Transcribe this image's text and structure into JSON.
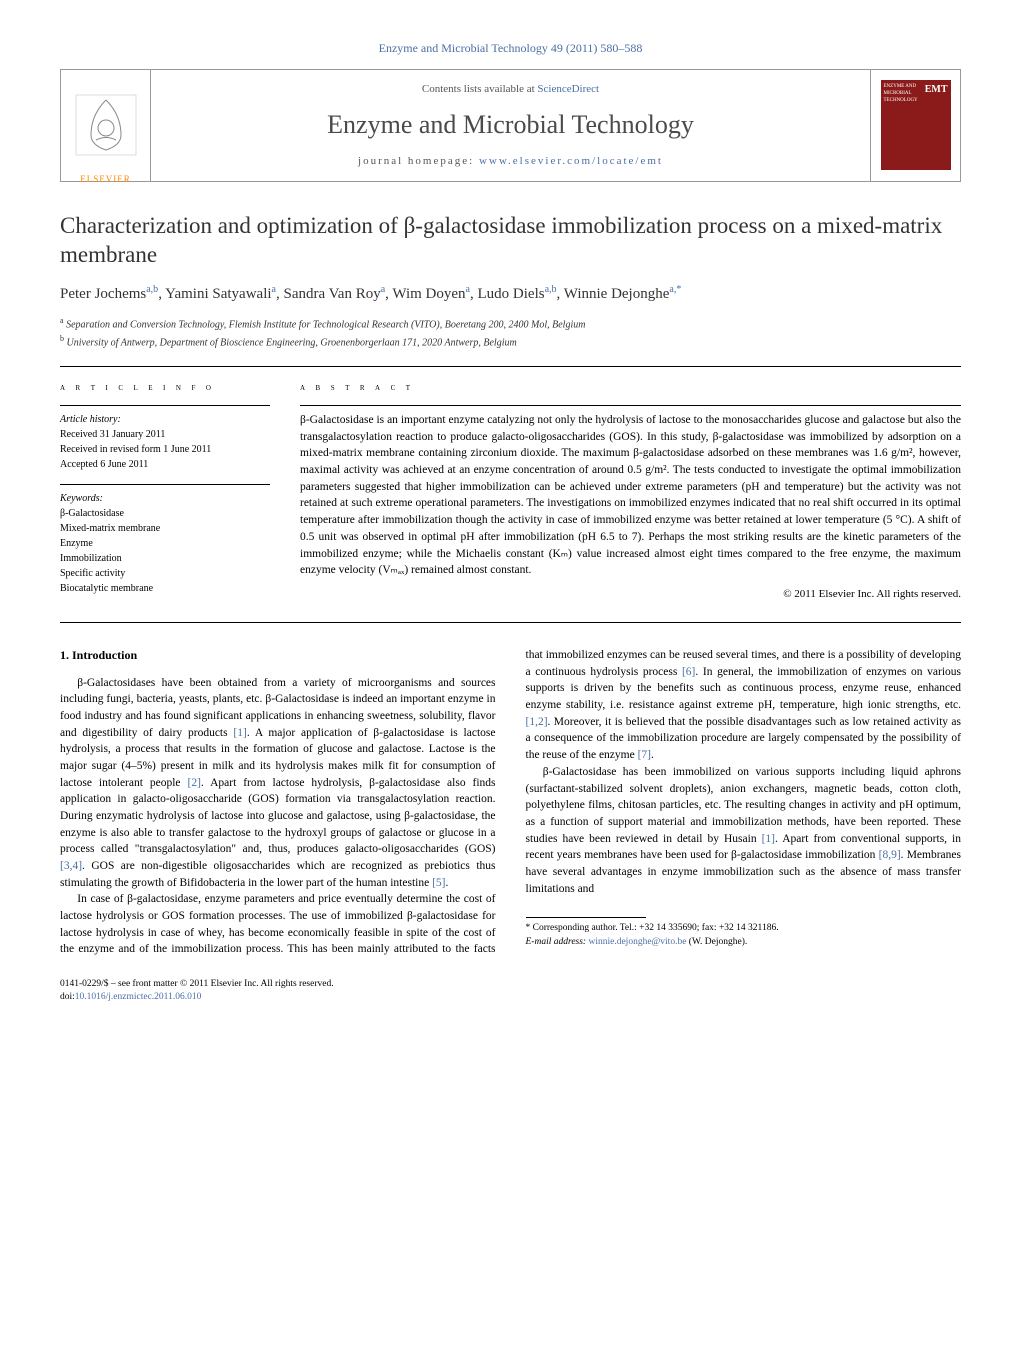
{
  "citation": "Enzyme and Microbial Technology 49 (2011) 580–588",
  "header": {
    "contents_text": "Contents lists available at ",
    "contents_link": "ScienceDirect",
    "journal": "Enzyme and Microbial Technology",
    "homepage_label": "journal homepage: ",
    "homepage_url": "www.elsevier.com/locate/emt",
    "publisher": "ELSEVIER",
    "cover_label_1": "ENZYME AND",
    "cover_label_2": "MICROBIAL",
    "cover_label_3": "TECHNOLOGY",
    "cover_emt": "EMT"
  },
  "title": "Characterization and optimization of β-galactosidase immobilization process on a mixed-matrix membrane",
  "authors_html": "Peter Jochems|a,b|, Yamini Satyawali|a|, Sandra Van Roy|a|, Wim Doyen|a|, Ludo Diels|a,b|, Winnie Dejonghe|a,*|",
  "affiliations": {
    "a": "Separation and Conversion Technology, Flemish Institute for Technological Research (VITO), Boeretang 200, 2400 Mol, Belgium",
    "b": "University of Antwerp, Department of Bioscience Engineering, Groenenborgerlaan 171, 2020 Antwerp, Belgium"
  },
  "article_info": {
    "heading": "a r t i c l e   i n f o",
    "history_label": "Article history:",
    "history": [
      "Received 31 January 2011",
      "Received in revised form 1 June 2011",
      "Accepted 6 June 2011"
    ],
    "keywords_label": "Keywords:",
    "keywords": [
      "β-Galactosidase",
      "Mixed-matrix membrane",
      "Enzyme",
      "Immobilization",
      "Specific activity",
      "Biocatalytic membrane"
    ]
  },
  "abstract": {
    "heading": "a b s t r a c t",
    "text": "β-Galactosidase is an important enzyme catalyzing not only the hydrolysis of lactose to the monosaccharides glucose and galactose but also the transgalactosylation reaction to produce galacto-oligosaccharides (GOS). In this study, β-galactosidase was immobilized by adsorption on a mixed-matrix membrane containing zirconium dioxide. The maximum β-galactosidase adsorbed on these membranes was 1.6 g/m², however, maximal activity was achieved at an enzyme concentration of around 0.5 g/m². The tests conducted to investigate the optimal immobilization parameters suggested that higher immobilization can be achieved under extreme parameters (pH and temperature) but the activity was not retained at such extreme operational parameters. The investigations on immobilized enzymes indicated that no real shift occurred in its optimal temperature after immobilization though the activity in case of immobilized enzyme was better retained at lower temperature (5 °C). A shift of 0.5 unit was observed in optimal pH after immobilization (pH 6.5 to 7). Perhaps the most striking results are the kinetic parameters of the immobilized enzyme; while the Michaelis constant (Kₘ) value increased almost eight times compared to the free enzyme, the maximum enzyme velocity (Vₘₐₓ) remained almost constant.",
    "copyright": "© 2011 Elsevier Inc. All rights reserved."
  },
  "body": {
    "section_heading": "1.  Introduction",
    "para1": "β-Galactosidases have been obtained from a variety of microorganisms and sources including fungi, bacteria, yeasts, plants, etc. β-Galactosidase is indeed an important enzyme in food industry and has found significant applications in enhancing sweetness, solubility, flavor and digestibility of dairy products [1]. A major application of β-galactosidase is lactose hydrolysis, a process that results in the formation of glucose and galactose. Lactose is the major sugar (4–5%) present in milk and its hydrolysis makes milk fit for consumption of lactose intolerant people [2]. Apart from lactose hydrolysis, β-galactosidase also finds application in galacto-oligosaccharide (GOS) formation via transgalactosylation reaction. During enzymatic hydrolysis of lactose into glucose and galactose, using β-galactosidase, the enzyme is also able to transfer galactose to the hydroxyl groups of galactose or glucose in a process called \"transgalactosylation\" and, thus, produces galacto-oligosaccharides (GOS) [3,4]. GOS are non-digestible oligosaccharides which are recognized as prebiotics thus stimulating the growth of Bifidobacteria in the lower part of the human intestine [5].",
    "para2": "In case of β-galactosidase, enzyme parameters and price eventually determine the cost of lactose hydrolysis or GOS formation processes. The use of immobilized β-galactosidase for lactose hydrolysis in case of whey, has become economically feasible in spite of the cost of the enzyme and of the immobilization process. This has been mainly attributed to the facts that immobilized enzymes can be reused several times, and there is a possibility of developing a continuous hydrolysis process [6]. In general, the immobilization of enzymes on various supports is driven by the benefits such as continuous process, enzyme reuse, enhanced enzyme stability, i.e. resistance against extreme pH, temperature, high ionic strengths, etc. [1,2]. Moreover, it is believed that the possible disadvantages such as low retained activity as a consequence of the immobilization procedure are largely compensated by the possibility of the reuse of the enzyme [7].",
    "para3": "β-Galactosidase has been immobilized on various supports including liquid aphrons (surfactant-stabilized solvent droplets), anion exchangers, magnetic beads, cotton cloth, polyethylene films, chitosan particles, etc. The resulting changes in activity and pH optimum, as a function of support material and immobilization methods, have been reported. These studies have been reviewed in detail by Husain [1]. Apart from conventional supports, in recent years membranes have been used for β-galactosidase immobilization [8,9]. Membranes have several advantages in enzyme immobilization such as the absence of mass transfer limitations and"
  },
  "footnote": {
    "corr": "* Corresponding author. Tel.: +32 14 335690; fax: +32 14 321186.",
    "email_label": "E-mail address: ",
    "email": "winnie.dejonghe@vito.be",
    "email_who": " (W. Dejonghe)."
  },
  "bottom": {
    "line1": "0141-0229/$ – see front matter © 2011 Elsevier Inc. All rights reserved.",
    "doi_label": "doi:",
    "doi": "10.1016/j.enzmictec.2011.06.010"
  },
  "colors": {
    "link": "#4a6fa5",
    "elsevier_orange": "#ff8800",
    "cover_bg": "#8b1a1a"
  }
}
